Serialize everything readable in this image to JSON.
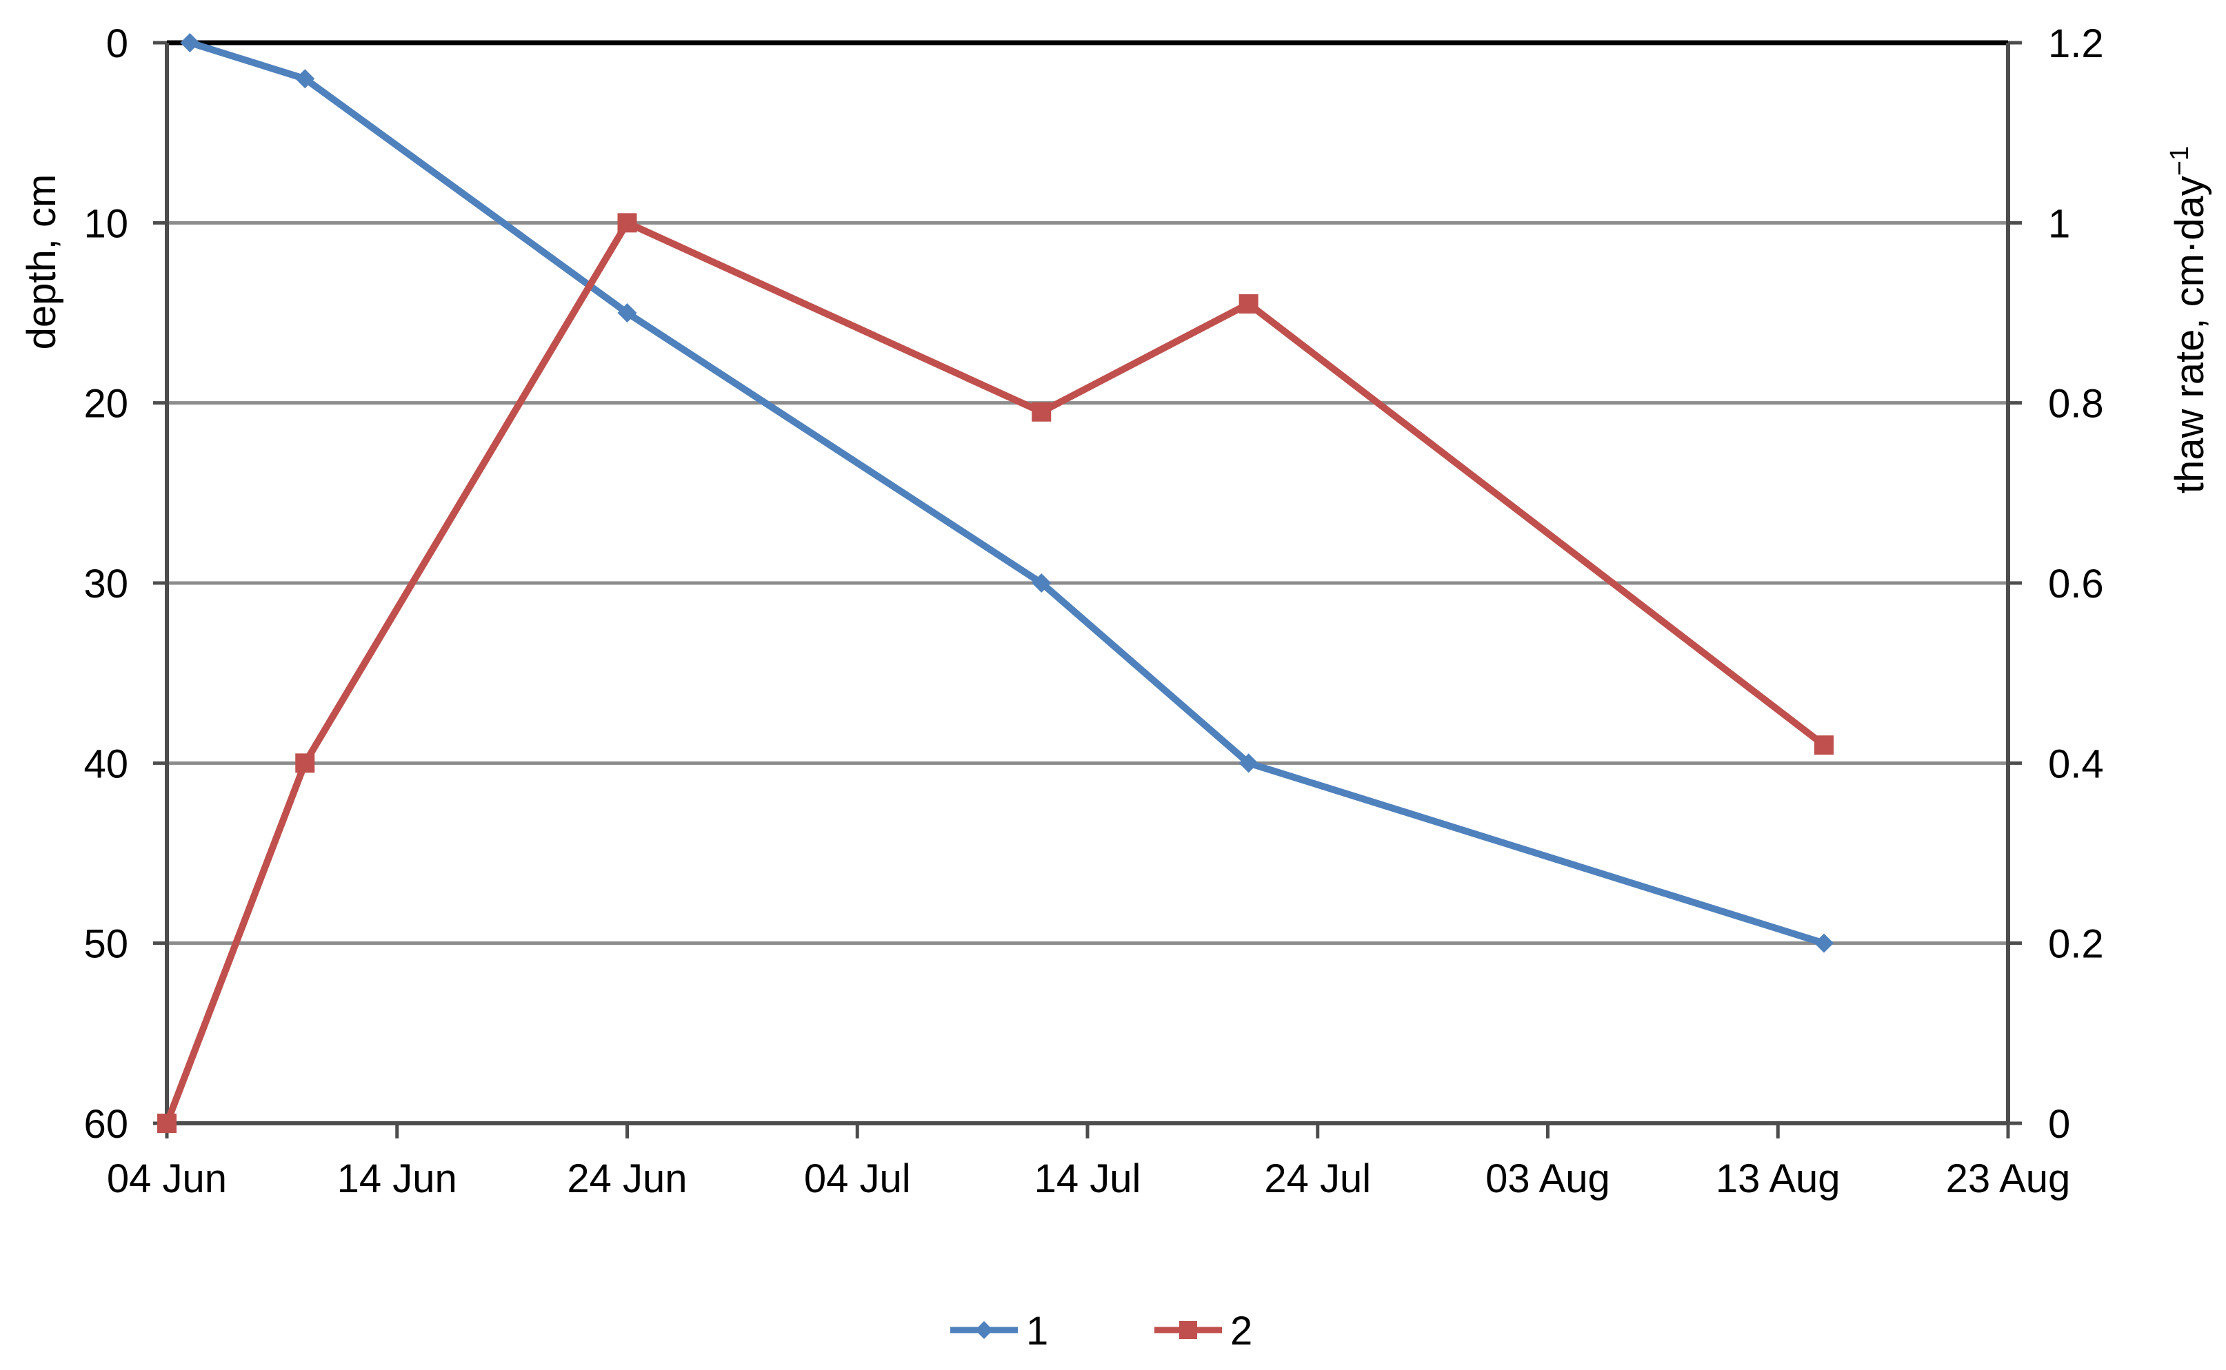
{
  "chart_data": {
    "type": "line",
    "x_axis": {
      "type": "date",
      "range": [
        "2023-06-04",
        "2023-08-23"
      ],
      "tick_interval_days": 10,
      "tick_labels": [
        "04 Jun",
        "14 Jun",
        "24 Jun",
        "04 Jul",
        "14 Jul",
        "24 Jul",
        "03 Aug",
        "13 Aug",
        "23 Aug"
      ]
    },
    "y_left": {
      "label": "depth, cm",
      "range": [
        0,
        60
      ],
      "inverted": true,
      "ticks": [
        0,
        10,
        20,
        30,
        40,
        50,
        60
      ],
      "tick_labels": [
        "0",
        "10",
        "20",
        "30",
        "40",
        "50",
        "60"
      ]
    },
    "y_right": {
      "label_main": "thaw rate,  cm·day",
      "label_sup": "−1",
      "range": [
        0,
        1.2
      ],
      "ticks": [
        0,
        0.2,
        0.4,
        0.6,
        0.8,
        1.0,
        1.2
      ],
      "tick_labels": [
        "0",
        "0.2",
        "0.4",
        "0.6",
        "0.8",
        "1",
        "1.2"
      ]
    },
    "grid": "horizontal",
    "legend_position": "bottom",
    "series": [
      {
        "name": "1",
        "axis": "left",
        "color": "#4F81BD",
        "marker": "diamond",
        "points": [
          {
            "x": "2023-06-05",
            "y": 0
          },
          {
            "x": "2023-06-10",
            "y": 2
          },
          {
            "x": "2023-06-24",
            "y": 15
          },
          {
            "x": "2023-07-12",
            "y": 30
          },
          {
            "x": "2023-07-21",
            "y": 40
          },
          {
            "x": "2023-08-15",
            "y": 50
          }
        ]
      },
      {
        "name": "2",
        "axis": "right",
        "color": "#C0504D",
        "marker": "square",
        "points": [
          {
            "x": "2023-06-04",
            "y": 0
          },
          {
            "x": "2023-06-10",
            "y": 0.4
          },
          {
            "x": "2023-06-24",
            "y": 1.0
          },
          {
            "x": "2023-07-12",
            "y": 0.79
          },
          {
            "x": "2023-07-21",
            "y": 0.91
          },
          {
            "x": "2023-08-15",
            "y": 0.42
          }
        ]
      }
    ]
  }
}
